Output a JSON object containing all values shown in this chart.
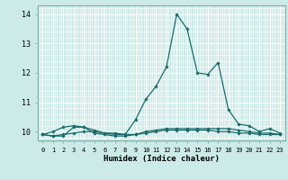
{
  "title": "",
  "xlabel": "Humidex (Indice chaleur)",
  "ylabel": "",
  "background_color": "#cceae7",
  "grid_color": "#ffffff",
  "line_color": "#1a6b6b",
  "x_values": [
    0,
    1,
    2,
    3,
    4,
    5,
    6,
    7,
    8,
    9,
    10,
    11,
    12,
    13,
    14,
    15,
    16,
    17,
    18,
    19,
    20,
    21,
    22,
    23
  ],
  "series": [
    [
      9.9,
      10.0,
      10.15,
      10.2,
      10.15,
      10.05,
      9.95,
      9.95,
      9.9,
      10.4,
      11.1,
      11.55,
      12.2,
      14.0,
      13.5,
      12.0,
      11.95,
      12.35,
      10.75,
      10.25,
      10.2,
      10.0,
      10.1,
      9.95
    ],
    [
      9.9,
      9.85,
      9.85,
      10.15,
      10.15,
      9.95,
      9.9,
      9.85,
      9.85,
      9.9,
      10.0,
      10.05,
      10.1,
      10.1,
      10.1,
      10.1,
      10.1,
      10.1,
      10.1,
      10.05,
      10.0,
      9.95,
      9.95,
      9.9
    ],
    [
      9.9,
      9.85,
      9.9,
      9.95,
      10.0,
      10.0,
      9.95,
      9.9,
      9.9,
      9.9,
      9.95,
      10.0,
      10.05,
      10.05,
      10.05,
      10.05,
      10.05,
      10.0,
      10.0,
      9.95,
      9.95,
      9.9,
      9.9,
      9.9
    ]
  ],
  "xlim": [
    -0.5,
    23.5
  ],
  "ylim": [
    9.7,
    14.3
  ],
  "yticks": [
    10,
    11,
    12,
    13,
    14
  ],
  "xticks": [
    0,
    1,
    2,
    3,
    4,
    5,
    6,
    7,
    8,
    9,
    10,
    11,
    12,
    13,
    14,
    15,
    16,
    17,
    18,
    19,
    20,
    21,
    22,
    23
  ]
}
